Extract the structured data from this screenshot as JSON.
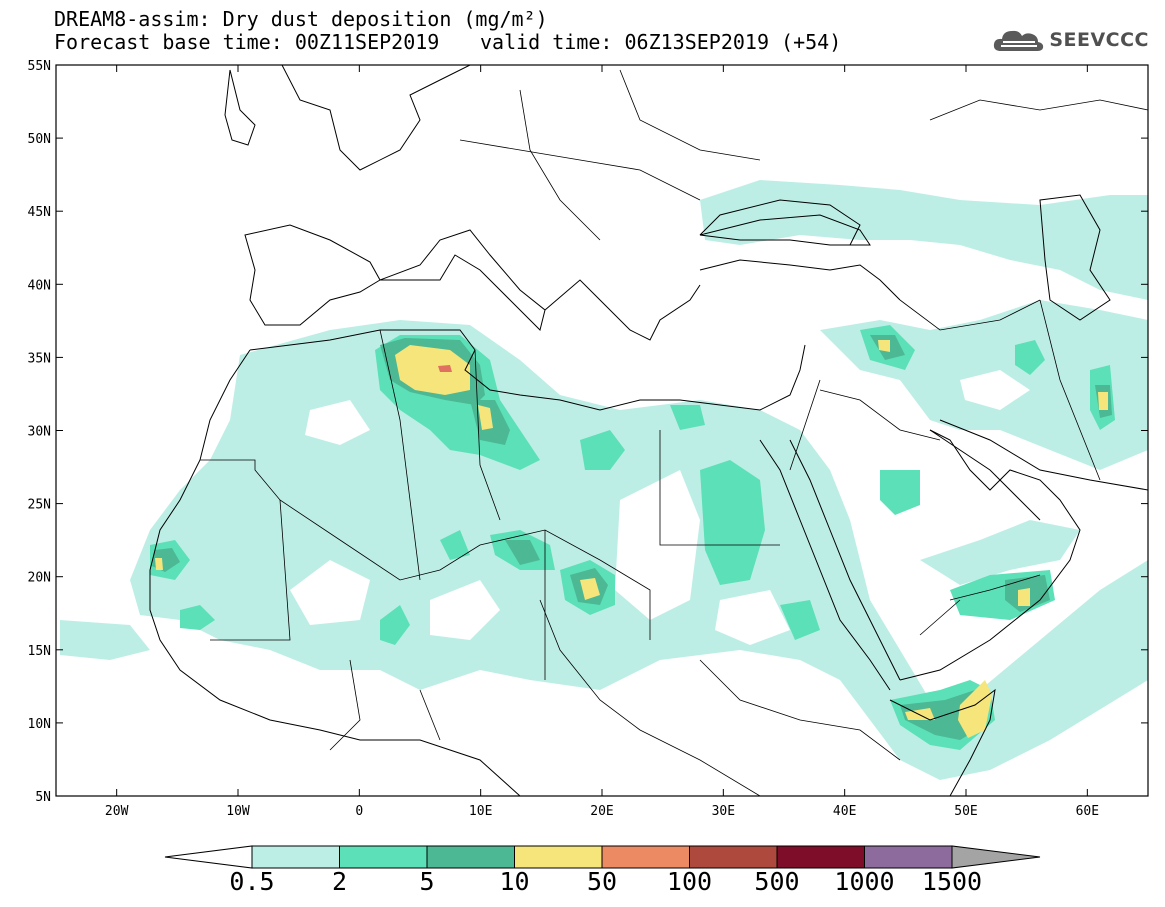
{
  "header": {
    "title": "DREAM8-assim: Dry dust deposition (mg/m²)",
    "base_time": "Forecast base time: 00Z11SEP2019",
    "valid_time": "valid time: 06Z13SEP2019 (+54)"
  },
  "logo": {
    "text": "SEEVCCC",
    "icon": "cloud-logo-icon"
  },
  "map": {
    "region": "North Africa, Middle East and Europe",
    "lon_range": [
      -25,
      65
    ],
    "lat_range": [
      5,
      55
    ],
    "lon_ticks": [
      "20W",
      "10W",
      "0",
      "10E",
      "20E",
      "30E",
      "40E",
      "50E",
      "60E"
    ],
    "lat_ticks": [
      "55N",
      "50N",
      "45N",
      "40N",
      "35N",
      "30N",
      "25N",
      "20N",
      "15N",
      "10N",
      "5N"
    ]
  },
  "colorbar": {
    "labels": [
      "0.5",
      "2",
      "5",
      "10",
      "50",
      "100",
      "500",
      "1000",
      "1500"
    ],
    "colors": [
      "#bdeee6",
      "#5ce0b8",
      "#4cb894",
      "#f5e57a",
      "#eb8a63",
      "#ae4a3d",
      "#7e0d2a",
      "#8d6b9c",
      "#a4a4a4"
    ],
    "under_color": "#ffffff"
  }
}
